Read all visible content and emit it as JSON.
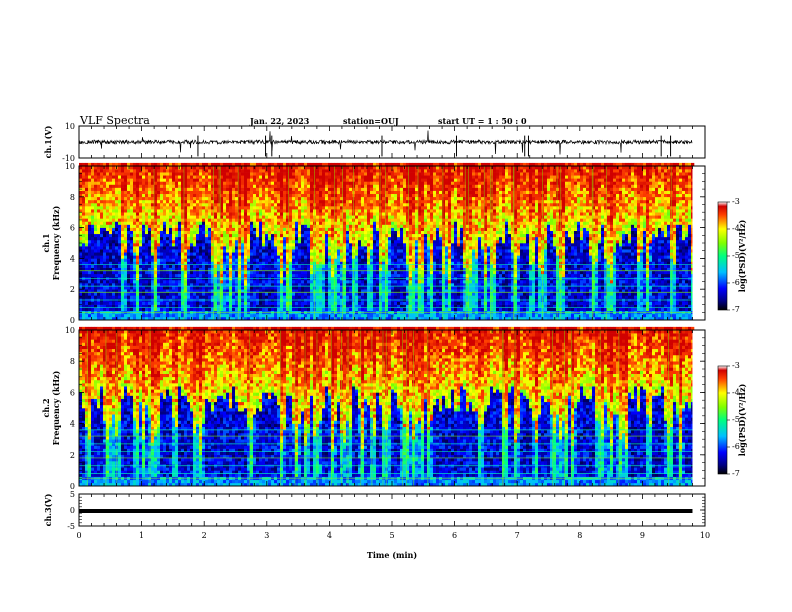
{
  "header": {
    "title": "VLF Spectra",
    "date": "Jan. 22, 2023",
    "station": "station=OUJ",
    "start": "start  UT =   1 : 50 : 0"
  },
  "chart_data": [
    {
      "type": "line",
      "panel": "ch1-waveform",
      "ylabel": "ch.1(V)",
      "ylim": [
        -10,
        10
      ],
      "yticks": [
        "10",
        "-10"
      ],
      "trace": "noisy waveform near 0 V with impulsive spikes"
    },
    {
      "type": "heatmap",
      "panel": "ch1-spectrogram",
      "ylabel": "ch.1 Frequency (kHz)",
      "ylim": [
        0,
        10
      ],
      "yticks": [
        "0",
        "2",
        "4",
        "6",
        "8",
        "10"
      ],
      "colorbar": {
        "label": "log(PSD)(V²/Hz)",
        "range": [
          -7,
          -3
        ],
        "ticks": [
          "-3",
          "-4",
          "-5",
          "-6",
          "-7"
        ]
      }
    },
    {
      "type": "heatmap",
      "panel": "ch2-spectrogram",
      "ylabel": "ch.2 Frequency (kHz)",
      "ylim": [
        0,
        10
      ],
      "yticks": [
        "0",
        "2",
        "4",
        "6",
        "8",
        "10"
      ],
      "colorbar": {
        "label": "log(PSD)(V²/Hz)",
        "range": [
          -7,
          -3
        ],
        "ticks": [
          "-3",
          "-4",
          "-5",
          "-6",
          "-7"
        ]
      }
    },
    {
      "type": "line",
      "panel": "ch3-waveform",
      "ylabel": "ch.3(V)",
      "ylim": [
        -5,
        5
      ],
      "yticks": [
        "5",
        "0",
        "-5"
      ],
      "trace": "flat line at approximately -0.3 V"
    }
  ],
  "xaxis": {
    "label": "Time (min)",
    "range": [
      0,
      10
    ],
    "ticks": [
      "0",
      "1",
      "2",
      "3",
      "4",
      "5",
      "6",
      "7",
      "8",
      "9",
      "10"
    ],
    "data_end": 9.8
  }
}
